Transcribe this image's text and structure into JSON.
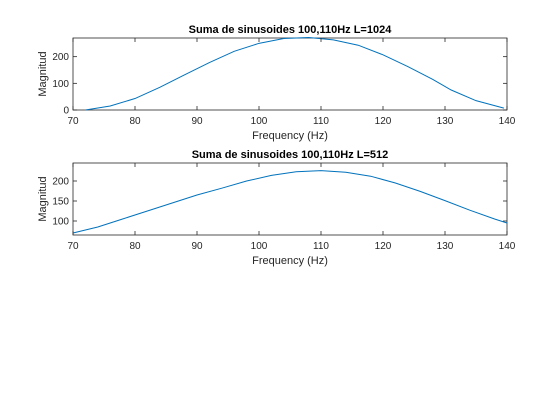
{
  "chart_data": [
    {
      "type": "line",
      "title": "Suma de sinusoides 100,110Hz L=1024",
      "xlabel": "Frequency (Hz)",
      "ylabel": "Magnitud",
      "xlim": [
        70,
        140
      ],
      "ylim": [
        0,
        270
      ],
      "xticks": [
        70,
        80,
        90,
        100,
        110,
        120,
        130,
        140
      ],
      "yticks": [
        0,
        100,
        200
      ],
      "grid": false,
      "color": "#0072bd",
      "series": [
        {
          "x": [
            72,
            76,
            80,
            84,
            88,
            92,
            96,
            100,
            104,
            108,
            112,
            116,
            120,
            124,
            128,
            131,
            135,
            139.5
          ],
          "values": [
            0,
            15,
            43,
            85,
            132,
            178,
            220,
            250,
            268,
            272,
            263,
            243,
            207,
            163,
            115,
            75,
            35,
            7
          ]
        }
      ]
    },
    {
      "type": "line",
      "title": "Suma de sinusoides 100,110Hz L=512",
      "xlabel": "Frequency (Hz)",
      "ylabel": "Magnitud",
      "xlim": [
        70,
        140
      ],
      "ylim": [
        65,
        245
      ],
      "xticks": [
        70,
        80,
        90,
        100,
        110,
        120,
        130,
        140
      ],
      "yticks": [
        100,
        150,
        200
      ],
      "grid": false,
      "color": "#0072bd",
      "series": [
        {
          "x": [
            70,
            74,
            78,
            82,
            86,
            90,
            94,
            98,
            102,
            106,
            110,
            114,
            118,
            122,
            126,
            130,
            134,
            138,
            140
          ],
          "values": [
            70,
            85,
            105,
            125,
            145,
            165,
            182,
            200,
            214,
            223,
            226,
            222,
            212,
            195,
            174,
            151,
            127,
            105,
            95
          ]
        }
      ]
    }
  ]
}
